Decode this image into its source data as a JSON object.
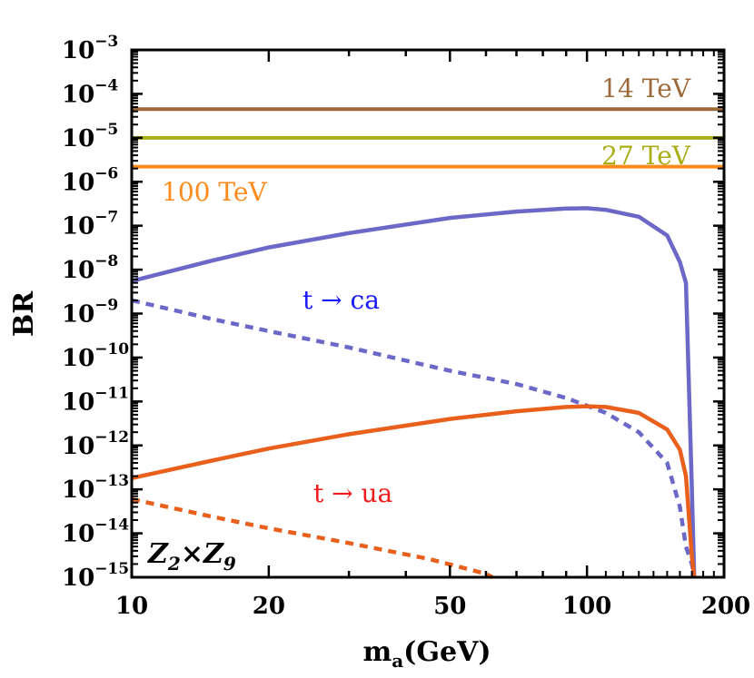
{
  "chart_data": {
    "type": "line",
    "title": "",
    "xlabel": "m",
    "xlabel_sub": "a",
    "xlabel_unit": "(GeV)",
    "ylabel": "BR",
    "xscale": "log",
    "yscale": "log",
    "xlim": [
      10,
      200
    ],
    "ylim": [
      1e-15,
      0.001
    ],
    "x_ticks": [
      {
        "value": 10,
        "label": "10"
      },
      {
        "value": 20,
        "label": "20"
      },
      {
        "value": 50,
        "label": "50"
      },
      {
        "value": 100,
        "label": "100"
      },
      {
        "value": 200,
        "label": "200"
      }
    ],
    "y_ticks": [
      {
        "value": -3,
        "base": "10",
        "exp": "−3"
      },
      {
        "value": -4,
        "base": "10",
        "exp": "−4"
      },
      {
        "value": -5,
        "base": "10",
        "exp": "−5"
      },
      {
        "value": -6,
        "base": "10",
        "exp": "−6"
      },
      {
        "value": -7,
        "base": "10",
        "exp": "−7"
      },
      {
        "value": -8,
        "base": "10",
        "exp": "−8"
      },
      {
        "value": -9,
        "base": "10",
        "exp": "−9"
      },
      {
        "value": -10,
        "base": "10",
        "exp": "−10"
      },
      {
        "value": -11,
        "base": "10",
        "exp": "−11"
      },
      {
        "value": -12,
        "base": "10",
        "exp": "−12"
      },
      {
        "value": -13,
        "base": "10",
        "exp": "−13"
      },
      {
        "value": -14,
        "base": "10",
        "exp": "−14"
      },
      {
        "value": -15,
        "base": "10",
        "exp": "−15"
      }
    ],
    "reference_lines": [
      {
        "name": "14 TeV",
        "label": "14 TeV",
        "y": 4.5e-05,
        "color": "#9c6a3a"
      },
      {
        "name": "27 TeV",
        "label": "27 TeV",
        "y": 1e-05,
        "color": "#a7ad12"
      },
      {
        "name": "100 TeV",
        "label": "100 TeV",
        "y": 2.2e-06,
        "color": "#ff8a1c"
      }
    ],
    "series": [
      {
        "name": "t→ca solid",
        "color": "#6b68c8",
        "dash": "solid",
        "x": [
          10,
          15,
          20,
          30,
          50,
          70,
          90,
          100,
          110,
          130,
          150,
          160,
          165,
          170,
          172
        ],
        "y": [
          5.5e-09,
          1.6e-08,
          3.2e-08,
          6.8e-08,
          1.5e-07,
          2.1e-07,
          2.45e-07,
          2.5e-07,
          2.3e-07,
          1.6e-07,
          6e-08,
          1.5e-08,
          5e-09,
          1e-13,
          1e-15
        ]
      },
      {
        "name": "t→ca dashed",
        "color": "#6b68c8",
        "dash": "dashed",
        "x": [
          10,
          15,
          20,
          30,
          50,
          70,
          90,
          100,
          110,
          130,
          150,
          160,
          165,
          170,
          172
        ],
        "y": [
          2e-09,
          7.5e-10,
          4e-10,
          1.7e-10,
          5e-11,
          2.5e-11,
          1.2e-11,
          8e-12,
          5.5e-12,
          2e-12,
          4e-13,
          4e-14,
          5e-15,
          2e-15,
          1e-15
        ]
      },
      {
        "name": "t→ua solid",
        "color": "#e8601c",
        "dash": "solid",
        "x": [
          10,
          15,
          20,
          30,
          50,
          70,
          90,
          100,
          110,
          130,
          150,
          160,
          165,
          170,
          172
        ],
        "y": [
          1.8e-13,
          4.5e-13,
          8.5e-13,
          1.8e-12,
          4e-12,
          6e-12,
          7.5e-12,
          7.8e-12,
          7.5e-12,
          5.5e-12,
          2.3e-12,
          8e-13,
          2e-13,
          3e-15,
          1e-15
        ]
      },
      {
        "name": "t→ua dashed",
        "color": "#e8601c",
        "dash": "dashed",
        "x": [
          10,
          15,
          20,
          30,
          45,
          60,
          62
        ],
        "y": [
          6e-14,
          2.4e-14,
          1.3e-14,
          6e-15,
          2.6e-15,
          1.2e-15,
          1e-15
        ]
      }
    ],
    "annotations": [
      {
        "text": "t → ca",
        "color": "#1a1aff"
      },
      {
        "text": "t → ua",
        "color": "#ee1c1c"
      }
    ],
    "model_label": {
      "a": "Z",
      "a_sub": "2",
      "op": "×",
      "b": "Z",
      "b_sub": "9"
    }
  }
}
